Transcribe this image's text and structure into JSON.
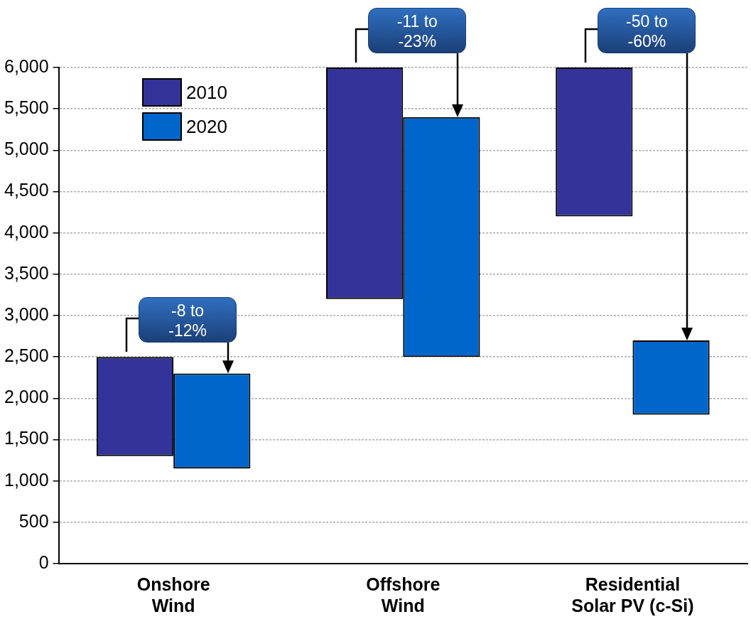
{
  "chart_data": {
    "type": "bar",
    "categories": [
      "Onshore Wind",
      "Offshore Wind",
      "Residential Solar PV (c-Si)"
    ],
    "series": [
      {
        "name": "2010",
        "color": "#333399",
        "base": [
          1300,
          3200,
          4200
        ],
        "values": [
          1200,
          2800,
          1800
        ]
      },
      {
        "name": "2020",
        "color": "#0066cc",
        "base": [
          1150,
          2500,
          1800
        ],
        "values": [
          1150,
          2900,
          900
        ]
      }
    ],
    "ylim": [
      0,
      6000
    ],
    "yticks": [
      0,
      500,
      {
        "value": 1000,
        "label": "1,000"
      },
      {
        "value": 1500,
        "label": "1,500"
      },
      {
        "value": 2000,
        "label": "2,000"
      },
      {
        "value": 2500,
        "label": "2,500"
      },
      {
        "value": 3000,
        "label": "3,000"
      },
      {
        "value": 3500,
        "label": "3,500"
      },
      {
        "value": 4000,
        "label": "4,000"
      },
      {
        "value": 4500,
        "label": "4,500"
      },
      {
        "value": 5000,
        "label": "5,000"
      },
      {
        "value": 5500,
        "label": "5,500"
      },
      {
        "value": 6000,
        "label": "6,000"
      }
    ],
    "grid": "y",
    "legend": "top left",
    "annotations": [
      "-8 to -12%",
      "-11 to -23%",
      "-50 to -60%"
    ]
  }
}
